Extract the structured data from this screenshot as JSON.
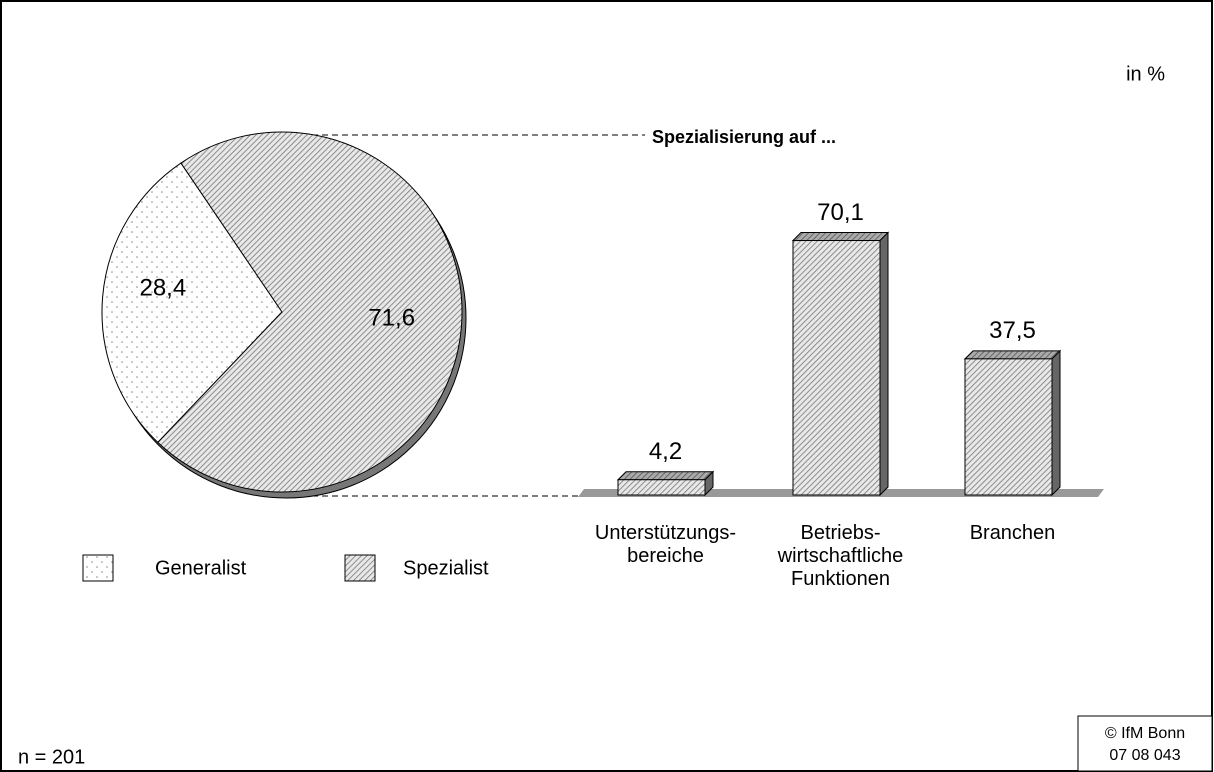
{
  "chart_data": [
    {
      "type": "pie",
      "categories": [
        "Generalist",
        "Spezialist"
      ],
      "values": [
        28.4,
        71.6
      ],
      "value_labels": [
        "28,4",
        "71,6"
      ]
    },
    {
      "type": "bar",
      "title": "Spezialisierung auf ...",
      "categories": [
        "Unterstützungs-\nbereiche",
        "Betriebs-\nwirtschaftliche\nFunktionen",
        "Branchen"
      ],
      "values": [
        4.2,
        70.1,
        37.5
      ],
      "value_labels": [
        "4,2",
        "70,1",
        "37,5"
      ]
    }
  ],
  "unit": "in %",
  "note": "n = 201",
  "source": [
    "© IfM Bonn",
    "07  08  043"
  ]
}
